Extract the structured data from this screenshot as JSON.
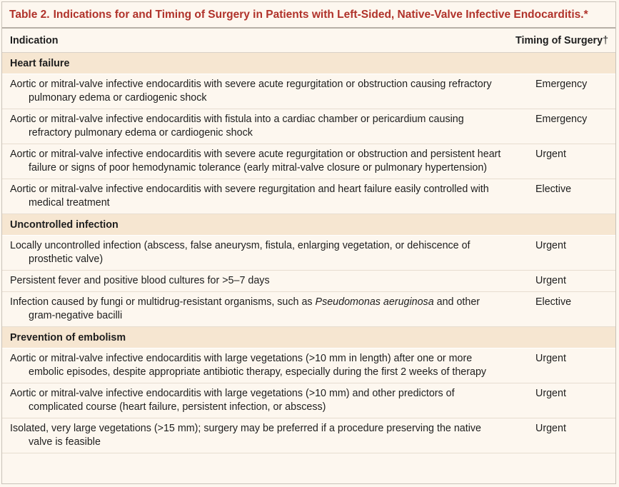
{
  "table": {
    "number": "Table 2.",
    "title": "Indications for and Timing of Surgery in Patients with Left-Sided, Native-Valve Infective Endocarditis.*",
    "col_indication": "Indication",
    "col_timing": "Timing of Surgery",
    "col_timing_mark": "†",
    "sections": [
      {
        "heading": "Heart failure",
        "rows": [
          {
            "indication": "Aortic or mitral-valve infective endocarditis with severe acute regurgitation or obstruction causing refractory pulmonary edema or cardiogenic shock",
            "timing": "Emergency"
          },
          {
            "indication": "Aortic or mitral-valve infective endocarditis with fistula into a cardiac chamber or pericardium causing refractory pulmonary edema or cardiogenic shock",
            "timing": "Emergency"
          },
          {
            "indication": "Aortic or mitral-valve infective endocarditis with severe acute regurgitation or obstruction and persistent heart failure or signs of poor hemodynamic tolerance (early mitral-valve closure or pulmonary hypertension)",
            "timing": "Urgent"
          },
          {
            "indication": "Aortic or mitral-valve infective endocarditis with severe regurgitation and heart failure easily controlled with medical treatment",
            "timing": "Elective"
          }
        ]
      },
      {
        "heading": "Uncontrolled infection",
        "rows": [
          {
            "indication": "Locally uncontrolled infection (abscess, false aneurysm, fistula, enlarging vegetation, or dehiscence of prosthetic valve)",
            "timing": "Urgent"
          },
          {
            "indication": "Persistent fever and positive blood cultures for >5–7 days",
            "timing": "Urgent"
          },
          {
            "indication_pre": "Infection caused by fungi or multidrug-resistant organisms, such as ",
            "indication_italic": "Pseudomonas aeruginosa",
            "indication_post": " and other gram-negative bacilli",
            "timing": "Elective"
          }
        ]
      },
      {
        "heading": "Prevention of embolism",
        "rows": [
          {
            "indication": "Aortic or mitral-valve infective endocarditis with large vegetations (>10 mm in length) after one or more embolic episodes, despite appropriate antibiotic therapy, especially during the first 2 weeks of therapy",
            "timing": "Urgent"
          },
          {
            "indication": "Aortic or mitral-valve infective endocarditis with large vegetations (>10 mm) and other predictors of complicated course (heart failure, persistent infection, or abscess)",
            "timing": "Urgent"
          },
          {
            "indication": "Isolated, very large vegetations (>15 mm); surgery may be preferred if a procedure preserving the native valve is feasible",
            "timing": "Urgent"
          }
        ]
      }
    ]
  }
}
